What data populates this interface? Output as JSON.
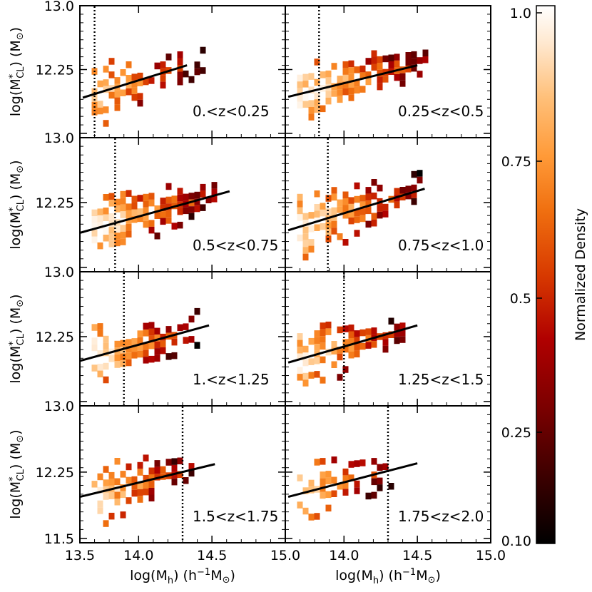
{
  "chart_data": {
    "type": "heatmap",
    "layout": "4 rows x 2 columns of panels, shared axes, colorbar on the right",
    "xlabel": "log(M_h) (h^-1 M_sun)",
    "ylabel": "log(M*_CL) (M_sun)",
    "xlim": [
      13.6,
      15.0
    ],
    "ylim": [
      11.45,
      13.0
    ],
    "x_ticks": [
      "13.5",
      "14.0",
      "14.5",
      "15.0"
    ],
    "y_tick_sets": {
      "top_three_rows": [
        "13.0",
        "12.25"
      ],
      "bottom_row": [
        "13.0",
        "12.25",
        "11.5"
      ]
    },
    "colorbar": {
      "label": "Normalized Density",
      "ticks": [
        "1.0",
        "0.75",
        "0.5",
        "0.25",
        "0.10"
      ],
      "colors": [
        "#000000",
        "#3a0000",
        "#7a0000",
        "#b00000",
        "#d83a00",
        "#f07010",
        "#ff9a38",
        "#ffc07a",
        "#ffe8cf",
        "#ffffff"
      ]
    },
    "panels": [
      {
        "label": "0.<z<0.25",
        "cut_x": 13.7,
        "fit": {
          "x0": 13.62,
          "y0": 11.92,
          "x1": 14.33,
          "y1": 12.3
        },
        "seed": 11,
        "span": 0.72,
        "density": 0.55
      },
      {
        "label": "0.25<z<0.5",
        "cut_x": 13.83,
        "fit": {
          "x0": 13.62,
          "y0": 11.93,
          "x1": 14.5,
          "y1": 12.3
        },
        "seed": 23,
        "span": 0.85,
        "density": 0.82
      },
      {
        "label": "0.5<z<0.75",
        "cut_x": 13.84,
        "fit": {
          "x0": 13.6,
          "y0": 11.9,
          "x1": 14.62,
          "y1": 12.38
        },
        "seed": 37,
        "span": 0.8,
        "density": 0.85
      },
      {
        "label": "0.75<z<1.0",
        "cut_x": 13.89,
        "fit": {
          "x0": 13.62,
          "y0": 11.93,
          "x1": 14.55,
          "y1": 12.41
        },
        "seed": 41,
        "span": 0.8,
        "density": 0.8
      },
      {
        "label": "1.<z<1.25",
        "cut_x": 13.9,
        "fit": {
          "x0": 13.6,
          "y0": 11.97,
          "x1": 14.48,
          "y1": 12.38
        },
        "seed": 53,
        "span": 0.7,
        "density": 0.78
      },
      {
        "label": "1.25<z<1.5",
        "cut_x": 14.0,
        "fit": {
          "x0": 13.62,
          "y0": 11.95,
          "x1": 14.5,
          "y1": 12.38
        },
        "seed": 67,
        "span": 0.7,
        "density": 0.72
      },
      {
        "label": "1.5<z<1.75",
        "cut_x": 14.3,
        "fit": {
          "x0": 13.6,
          "y0": 11.97,
          "x1": 14.52,
          "y1": 12.34
        },
        "seed": 71,
        "span": 0.65,
        "density": 0.75
      },
      {
        "label": "1.75<z<2.0",
        "cut_x": 14.3,
        "fit": {
          "x0": 13.62,
          "y0": 11.97,
          "x1": 14.5,
          "y1": 12.35
        },
        "seed": 83,
        "span": 0.65,
        "density": 0.55
      }
    ]
  }
}
